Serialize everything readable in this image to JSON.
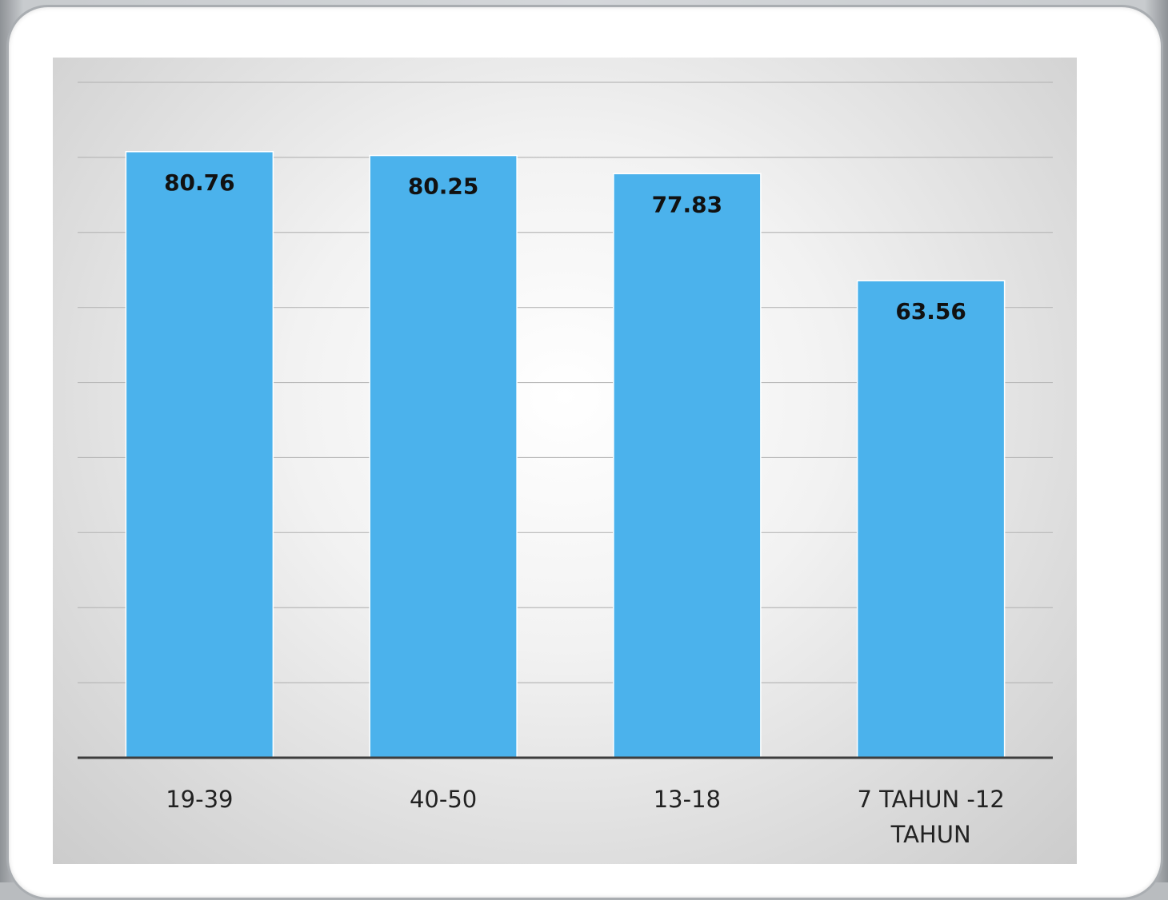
{
  "chart_data": {
    "type": "bar",
    "categories": [
      "19-39",
      "40-50",
      "13-18",
      "7 TAHUN -12 TAHUN"
    ],
    "category_label_lines": [
      [
        "19-39"
      ],
      [
        "40-50"
      ],
      [
        "13-18"
      ],
      [
        "7 TAHUN -12",
        "TAHUN"
      ]
    ],
    "values": [
      80.76,
      80.25,
      77.83,
      63.56
    ],
    "data_labels": [
      "80.76",
      "80.25",
      "77.83",
      "63.56"
    ],
    "ylim": [
      0,
      90
    ],
    "grid": true,
    "legend": false,
    "bar_color": "#4bb2ec"
  }
}
